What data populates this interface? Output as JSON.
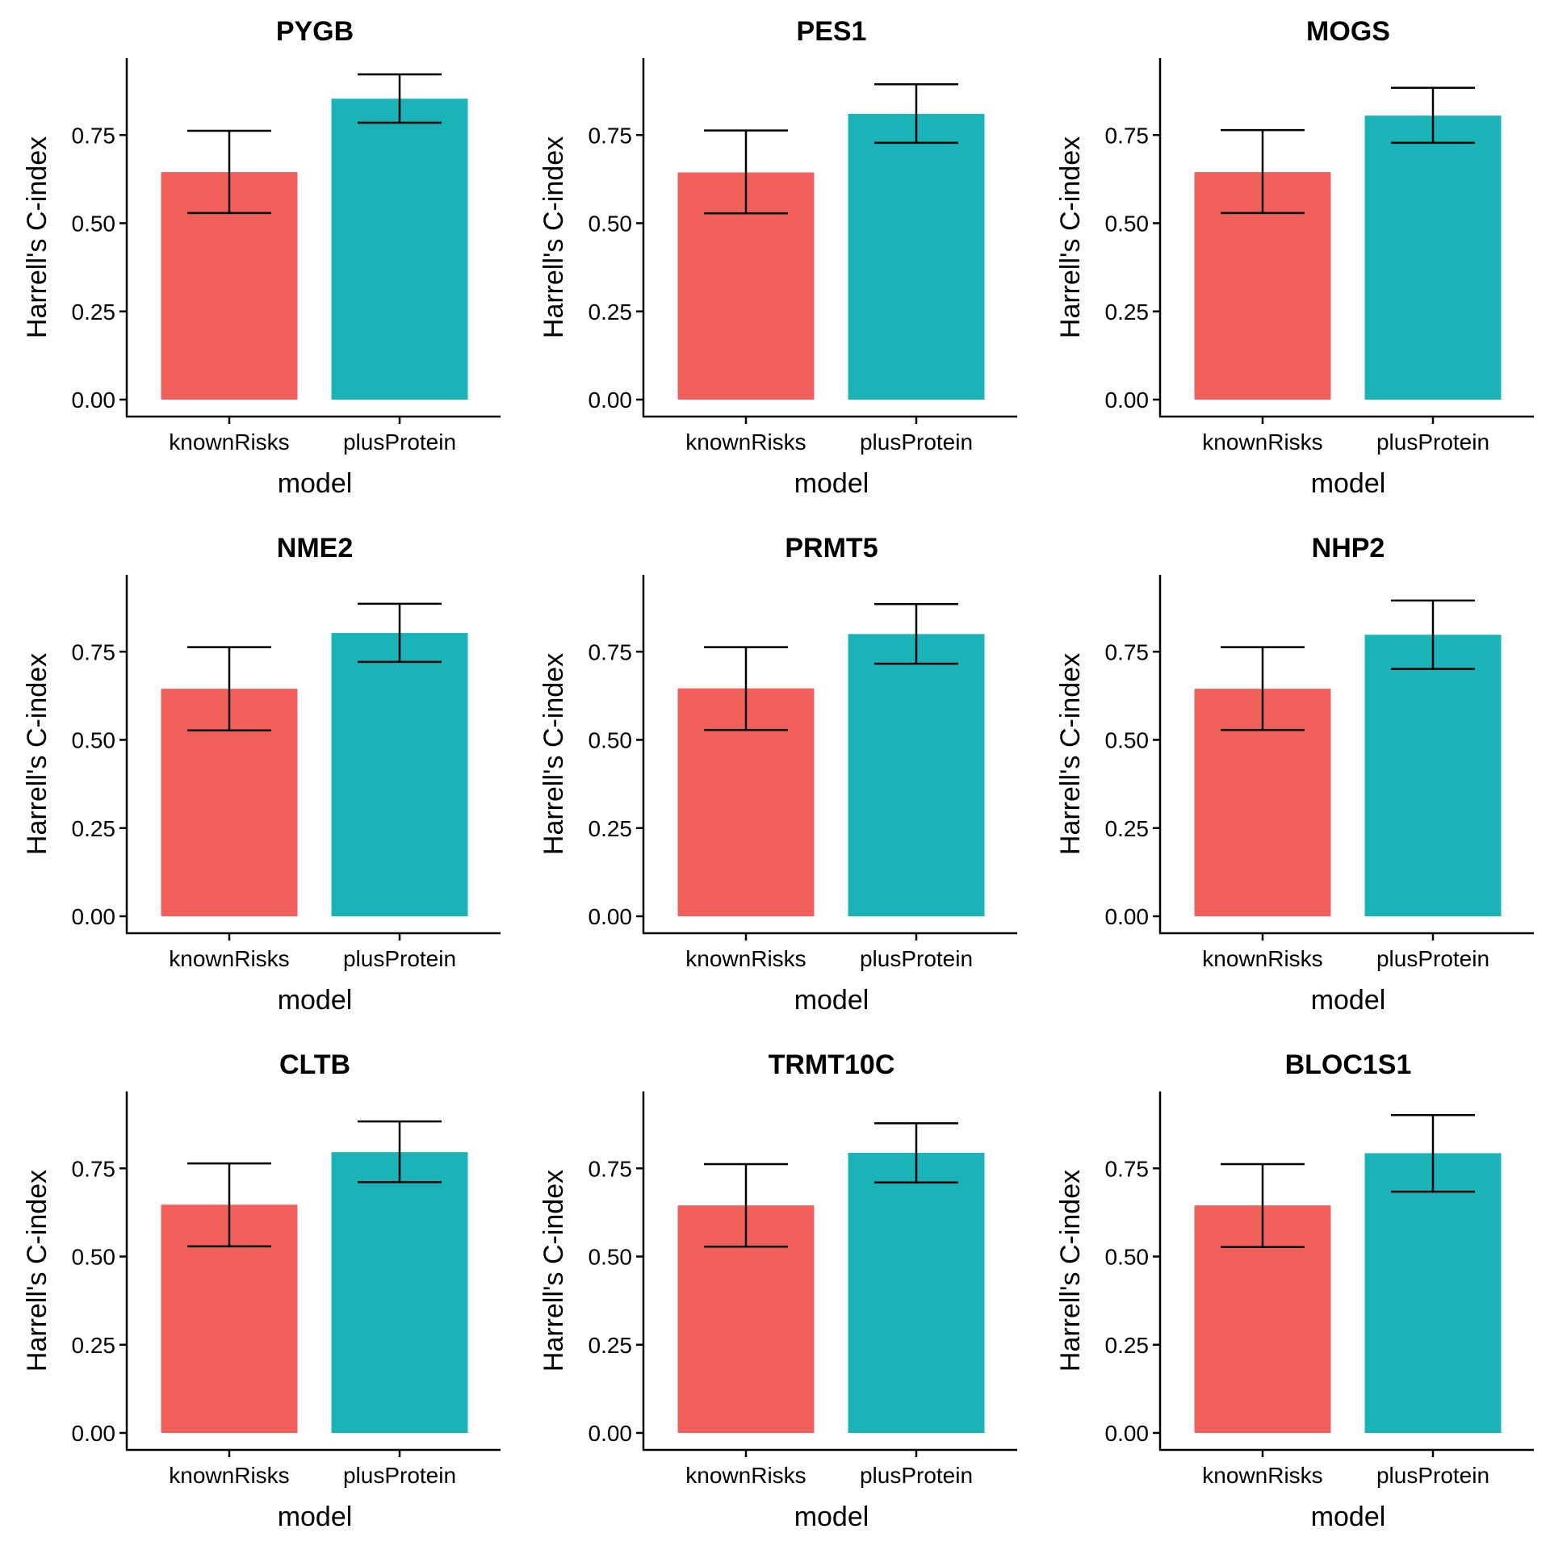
{
  "chart_data": {
    "type": "bar",
    "layout": "3x3 facet grid",
    "xlabel": "model",
    "ylabel": "Harrell's C-index",
    "categories": [
      "knownRisks",
      "plusProtein"
    ],
    "colors": {
      "knownRisks": "#F2605C",
      "plusProtein": "#19B3B8"
    },
    "yticks": [
      "0.00",
      "0.25",
      "0.50",
      "0.75"
    ],
    "ytick_values": [
      0,
      0.25,
      0.5,
      0.75
    ],
    "ylim": [
      0,
      0.92
    ],
    "grid": false,
    "legend": "none",
    "panels": [
      {
        "title": "PYGB",
        "values": [
          0.645,
          0.853
        ],
        "lower": [
          0.529,
          0.785
        ],
        "upper": [
          0.762,
          0.922
        ]
      },
      {
        "title": "PES1",
        "values": [
          0.644,
          0.81
        ],
        "lower": [
          0.528,
          0.728
        ],
        "upper": [
          0.763,
          0.894
        ]
      },
      {
        "title": "MOGS",
        "values": [
          0.645,
          0.805
        ],
        "lower": [
          0.529,
          0.728
        ],
        "upper": [
          0.764,
          0.884
        ]
      },
      {
        "title": "NME2",
        "values": [
          0.645,
          0.803
        ],
        "lower": [
          0.527,
          0.721
        ],
        "upper": [
          0.763,
          0.886
        ]
      },
      {
        "title": "PRMT5",
        "values": [
          0.646,
          0.8
        ],
        "lower": [
          0.528,
          0.716
        ],
        "upper": [
          0.763,
          0.885
        ]
      },
      {
        "title": "NHP2",
        "values": [
          0.645,
          0.798
        ],
        "lower": [
          0.528,
          0.701
        ],
        "upper": [
          0.763,
          0.895
        ]
      },
      {
        "title": "CLTB",
        "values": [
          0.647,
          0.796
        ],
        "lower": [
          0.529,
          0.711
        ],
        "upper": [
          0.764,
          0.883
        ]
      },
      {
        "title": "TRMT10C",
        "values": [
          0.645,
          0.794
        ],
        "lower": [
          0.528,
          0.71
        ],
        "upper": [
          0.762,
          0.878
        ]
      },
      {
        "title": "BLOC1S1",
        "values": [
          0.645,
          0.793
        ],
        "lower": [
          0.527,
          0.684
        ],
        "upper": [
          0.762,
          0.901
        ]
      }
    ]
  }
}
